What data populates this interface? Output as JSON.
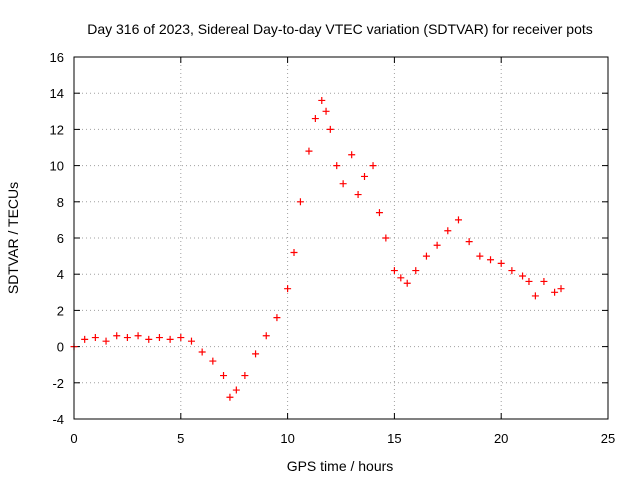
{
  "chart_data": {
    "type": "scatter",
    "title": "Day 316 of 2023, Sidereal Day-to-day VTEC variation (SDTVAR) for receiver pots",
    "xlabel": "GPS time / hours",
    "ylabel": "SDTVAR / TECUs",
    "xlim": [
      0,
      25
    ],
    "ylim": [
      -4,
      16
    ],
    "x_ticks": [
      0,
      5,
      10,
      15,
      20,
      25
    ],
    "y_ticks": [
      -4,
      -2,
      0,
      2,
      4,
      6,
      8,
      10,
      12,
      14,
      16
    ],
    "grid": true,
    "marker": "+",
    "color": "#ff0000",
    "series": [
      {
        "name": "SDTVAR",
        "x": [
          0.0,
          0.5,
          1.0,
          1.5,
          2.0,
          2.5,
          3.0,
          3.5,
          4.0,
          4.5,
          5.0,
          5.5,
          6.0,
          6.5,
          7.0,
          7.3,
          7.6,
          8.0,
          8.5,
          9.0,
          9.5,
          10.0,
          10.3,
          10.6,
          11.0,
          11.3,
          11.6,
          11.8,
          12.0,
          12.3,
          12.6,
          13.0,
          13.3,
          13.6,
          14.0,
          14.3,
          14.6,
          15.0,
          15.3,
          15.6,
          16.0,
          16.5,
          17.0,
          17.5,
          18.0,
          18.5,
          19.0,
          19.5,
          20.0,
          20.5,
          21.0,
          21.3,
          21.6,
          22.0,
          22.5,
          22.8
        ],
        "y": [
          0.0,
          0.4,
          0.5,
          0.3,
          0.6,
          0.5,
          0.6,
          0.4,
          0.5,
          0.4,
          0.5,
          0.3,
          -0.3,
          -0.8,
          -1.6,
          -2.8,
          -2.4,
          -1.6,
          -0.4,
          0.6,
          1.6,
          3.2,
          5.2,
          8.0,
          10.8,
          12.6,
          13.6,
          13.0,
          12.0,
          10.0,
          9.0,
          10.6,
          8.4,
          9.4,
          10.0,
          7.4,
          6.0,
          4.2,
          3.8,
          3.5,
          4.2,
          5.0,
          5.6,
          6.4,
          7.0,
          5.8,
          5.0,
          4.8,
          4.6,
          4.2,
          3.9,
          3.6,
          2.8,
          3.6,
          3.0,
          3.2
        ]
      }
    ]
  }
}
